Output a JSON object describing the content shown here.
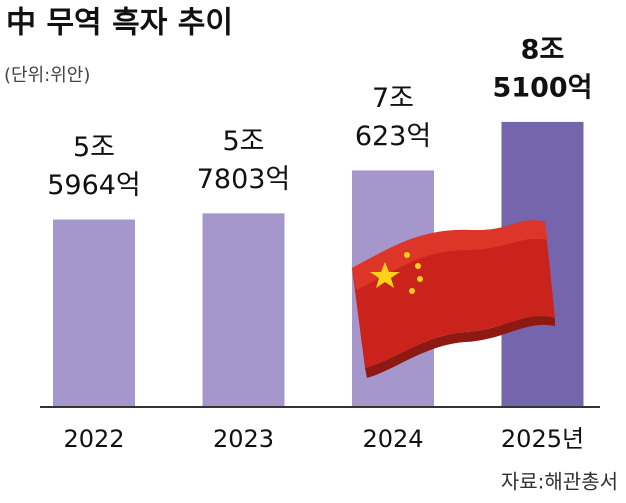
{
  "chart_data": {
    "type": "bar",
    "title": "中 무역 흑자 추이",
    "unit": "(단위:위안)",
    "source": "자료:해관총서",
    "categories": [
      "2022",
      "2023",
      "2024",
      "2025년"
    ],
    "values": [
      55964,
      57803,
      70623,
      85100
    ],
    "value_labels": [
      [
        "5조",
        "5964억"
      ],
      [
        "5조",
        "7803억"
      ],
      [
        "7조",
        "623억"
      ],
      [
        "8조",
        "5100억"
      ]
    ],
    "colors": [
      "#a597cc",
      "#a597cc",
      "#a597cc",
      "#7565ad"
    ],
    "ylim": [
      0,
      100000
    ]
  }
}
